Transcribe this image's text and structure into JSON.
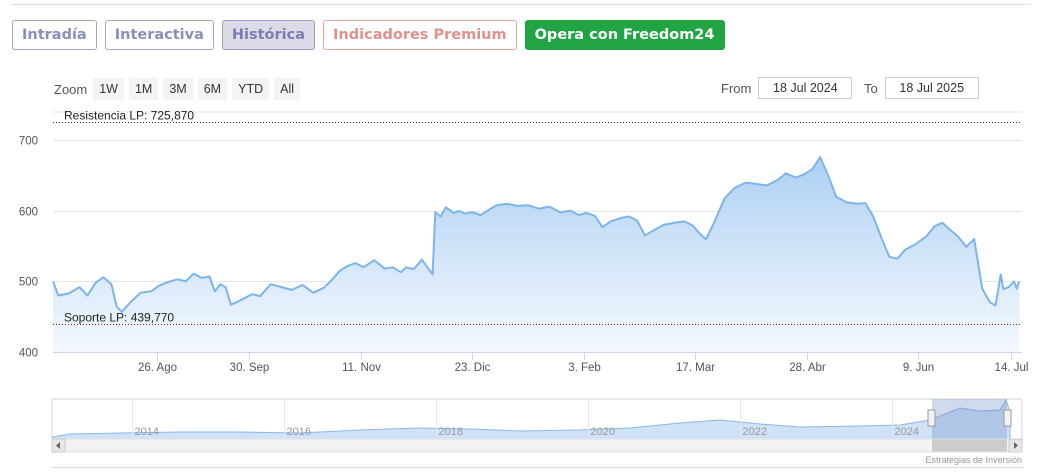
{
  "tabs": [
    {
      "label": "Intradía",
      "state": "normal"
    },
    {
      "label": "Interactiva",
      "state": "normal"
    },
    {
      "label": "Histórica",
      "state": "active"
    },
    {
      "label": "Indicadores Premium",
      "state": "premium"
    },
    {
      "label": "Opera con Freedom24",
      "state": "cta"
    }
  ],
  "zoom": {
    "label": "Zoom",
    "buttons": [
      "1W",
      "1M",
      "3M",
      "6M",
      "YTD",
      "All"
    ]
  },
  "range": {
    "from_label": "From",
    "from_value": "18 Jul 2024",
    "to_label": "To",
    "to_value": "18 Jul 2025"
  },
  "credits": "Estrategias de Inversión",
  "colors": {
    "line": "#7cb5ec",
    "area_top": "#a9cdf2",
    "area_bottom": "#f3f8fe",
    "resistance": "#333333",
    "support": "#8b1a1a",
    "cta": "#21a544"
  },
  "chart_data": {
    "type": "area",
    "x_start": "2024-07-18",
    "x_end": "2025-07-18",
    "ylim": [
      400,
      740
    ],
    "y_ticks": [
      400,
      500,
      600,
      700
    ],
    "x_ticks": [
      {
        "date": "2024-08-26",
        "label": "26. Ago"
      },
      {
        "date": "2024-09-30",
        "label": "30. Sep"
      },
      {
        "date": "2024-11-11",
        "label": "11. Nov"
      },
      {
        "date": "2024-12-23",
        "label": "23. Dic"
      },
      {
        "date": "2025-02-03",
        "label": "3. Feb"
      },
      {
        "date": "2025-03-17",
        "label": "17. Mar"
      },
      {
        "date": "2025-04-28",
        "label": "28. Abr"
      },
      {
        "date": "2025-06-09",
        "label": "9. Jun"
      },
      {
        "date": "2025-07-14",
        "label": "14. Jul"
      }
    ],
    "plot_lines": [
      {
        "label": "Resistencia LP: 725,870",
        "value": 725.87
      },
      {
        "label": "Soporte LP: 439,770",
        "value": 439.77
      }
    ],
    "series": [
      {
        "points": [
          [
            "2024-07-18",
            500
          ],
          [
            "2024-07-20",
            480
          ],
          [
            "2024-07-24",
            483
          ],
          [
            "2024-07-28",
            492
          ],
          [
            "2024-07-31",
            480
          ],
          [
            "2024-08-03",
            498
          ],
          [
            "2024-08-06",
            506
          ],
          [
            "2024-08-09",
            496
          ],
          [
            "2024-08-11",
            464
          ],
          [
            "2024-08-13",
            457
          ],
          [
            "2024-08-16",
            470
          ],
          [
            "2024-08-20",
            484
          ],
          [
            "2024-08-24",
            486
          ],
          [
            "2024-08-27",
            494
          ],
          [
            "2024-08-31",
            500
          ],
          [
            "2024-09-03",
            503
          ],
          [
            "2024-09-06",
            500
          ],
          [
            "2024-09-09",
            511
          ],
          [
            "2024-09-12",
            505
          ],
          [
            "2024-09-15",
            507
          ],
          [
            "2024-09-17",
            486
          ],
          [
            "2024-09-19",
            496
          ],
          [
            "2024-09-21",
            492
          ],
          [
            "2024-09-23",
            467
          ],
          [
            "2024-09-27",
            474
          ],
          [
            "2024-10-01",
            482
          ],
          [
            "2024-10-04",
            479
          ],
          [
            "2024-10-08",
            496
          ],
          [
            "2024-10-12",
            492
          ],
          [
            "2024-10-16",
            488
          ],
          [
            "2024-10-20",
            495
          ],
          [
            "2024-10-24",
            484
          ],
          [
            "2024-10-28",
            491
          ],
          [
            "2024-10-31",
            502
          ],
          [
            "2024-11-03",
            515
          ],
          [
            "2024-11-06",
            522
          ],
          [
            "2024-11-09",
            526
          ],
          [
            "2024-11-12",
            520
          ],
          [
            "2024-11-16",
            530
          ],
          [
            "2024-11-20",
            518
          ],
          [
            "2024-11-23",
            520
          ],
          [
            "2024-11-26",
            513
          ],
          [
            "2024-11-28",
            520
          ],
          [
            "2024-11-30",
            518
          ],
          [
            "2024-12-01",
            518
          ],
          [
            "2024-12-04",
            531
          ],
          [
            "2024-12-06",
            520
          ],
          [
            "2024-12-08",
            510
          ],
          [
            "2024-12-09",
            598
          ],
          [
            "2024-12-11",
            592
          ],
          [
            "2024-12-13",
            605
          ],
          [
            "2024-12-16",
            597
          ],
          [
            "2024-12-18",
            600
          ],
          [
            "2024-12-20",
            596
          ],
          [
            "2024-12-23",
            598
          ],
          [
            "2024-12-26",
            594
          ],
          [
            "2024-12-29",
            601
          ],
          [
            "2025-01-01",
            608
          ],
          [
            "2025-01-05",
            610
          ],
          [
            "2025-01-09",
            607
          ],
          [
            "2025-01-13",
            608
          ],
          [
            "2025-01-17",
            603
          ],
          [
            "2025-01-21",
            606
          ],
          [
            "2025-01-25",
            598
          ],
          [
            "2025-01-29",
            600
          ],
          [
            "2025-02-01",
            594
          ],
          [
            "2025-02-04",
            597
          ],
          [
            "2025-02-07",
            593
          ],
          [
            "2025-02-10",
            577
          ],
          [
            "2025-02-13",
            585
          ],
          [
            "2025-02-17",
            590
          ],
          [
            "2025-02-20",
            592
          ],
          [
            "2025-02-23",
            586
          ],
          [
            "2025-02-26",
            565
          ],
          [
            "2025-03-02",
            574
          ],
          [
            "2025-03-05",
            580
          ],
          [
            "2025-03-09",
            583
          ],
          [
            "2025-03-13",
            585
          ],
          [
            "2025-03-16",
            579
          ],
          [
            "2025-03-19",
            566
          ],
          [
            "2025-03-21",
            560
          ],
          [
            "2025-03-24",
            583
          ],
          [
            "2025-03-28",
            618
          ],
          [
            "2025-04-01",
            633
          ],
          [
            "2025-04-05",
            640
          ],
          [
            "2025-04-09",
            638
          ],
          [
            "2025-04-13",
            636
          ],
          [
            "2025-04-17",
            644
          ],
          [
            "2025-04-20",
            653
          ],
          [
            "2025-04-24",
            647
          ],
          [
            "2025-04-27",
            652
          ],
          [
            "2025-04-30",
            659
          ],
          [
            "2025-05-03",
            676
          ],
          [
            "2025-05-06",
            650
          ],
          [
            "2025-05-09",
            620
          ],
          [
            "2025-05-13",
            612
          ],
          [
            "2025-05-17",
            610
          ],
          [
            "2025-05-20",
            611
          ],
          [
            "2025-05-23",
            592
          ],
          [
            "2025-05-26",
            562
          ],
          [
            "2025-05-29",
            535
          ],
          [
            "2025-06-01",
            532
          ],
          [
            "2025-06-04",
            545
          ],
          [
            "2025-06-08",
            553
          ],
          [
            "2025-06-12",
            564
          ],
          [
            "2025-06-15",
            578
          ],
          [
            "2025-06-18",
            583
          ],
          [
            "2025-06-21",
            573
          ],
          [
            "2025-06-24",
            563
          ],
          [
            "2025-06-27",
            549
          ],
          [
            "2025-06-30",
            560
          ],
          [
            "2025-07-03",
            490
          ],
          [
            "2025-07-06",
            470
          ],
          [
            "2025-07-08",
            466
          ],
          [
            "2025-07-10",
            510
          ],
          [
            "2025-07-11",
            489
          ],
          [
            "2025-07-13",
            492
          ],
          [
            "2025-07-15",
            500
          ],
          [
            "2025-07-16",
            490
          ],
          [
            "2025-07-17",
            500
          ]
        ]
      }
    ]
  },
  "navigator": {
    "labels": [
      "2014",
      "2016",
      "2018",
      "2020",
      "2022",
      "2024"
    ]
  }
}
